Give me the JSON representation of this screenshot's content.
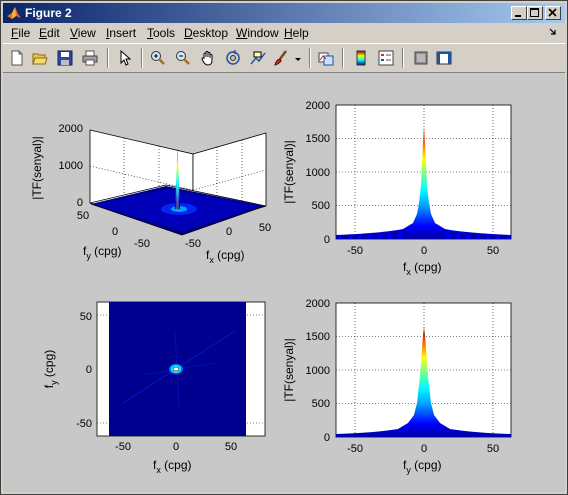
{
  "window": {
    "title": "Figure 2"
  },
  "menubar": {
    "items": [
      {
        "pre": "",
        "u": "F",
        "post": "ile"
      },
      {
        "pre": "",
        "u": "E",
        "post": "dit"
      },
      {
        "pre": "",
        "u": "V",
        "post": "iew"
      },
      {
        "pre": "",
        "u": "I",
        "post": "nsert"
      },
      {
        "pre": "",
        "u": "T",
        "post": "ools"
      },
      {
        "pre": "",
        "u": "D",
        "post": "esktop"
      },
      {
        "pre": "",
        "u": "W",
        "post": "indow"
      },
      {
        "pre": "",
        "u": "H",
        "post": "elp"
      }
    ]
  },
  "toolbar": {
    "icons": [
      "new-figure-icon",
      "open-file-icon",
      "save-icon",
      "print-icon",
      "edit-plot-arrow-icon",
      "zoom-in-icon",
      "zoom-out-icon",
      "pan-hand-icon",
      "rotate-3d-icon",
      "data-cursor-icon",
      "brush-icon",
      "brush-dropdown-icon",
      "link-plot-icon",
      "colorbar-icon",
      "legend-icon",
      "hide-plot-tools-icon",
      "show-plot-tools-icon"
    ]
  },
  "colors": {
    "accent_low": "#00008f",
    "accent_high": "#800000"
  },
  "plots": {
    "p1": {
      "ylabel": "|TF(senyal)|",
      "xlabel_main": "f",
      "xlabel_sub": "x",
      "xlabel_unit": " (cpg)",
      "ylabel2_main": "f",
      "ylabel2_sub": "y",
      "ylabel2_unit": " (cpg)",
      "zticks": [
        "2000",
        "1000",
        "0"
      ],
      "yticks": [
        "50",
        "0",
        "-50"
      ],
      "xticks": [
        "-50",
        "0",
        "50"
      ]
    },
    "p2": {
      "ylabel": "|TF(senyal)|",
      "xlabel_main": "f",
      "xlabel_sub": "x",
      "xlabel_unit": " (cpg)",
      "yticks": [
        "2000",
        "1500",
        "1000",
        "500",
        "0"
      ],
      "xticks": [
        "-50",
        "0",
        "50"
      ]
    },
    "p3": {
      "ylabel_main": "f",
      "ylabel_sub": "y",
      "ylabel_unit": " (cpg)",
      "xlabel_main": "f",
      "xlabel_sub": "x",
      "xlabel_unit": " (cpg)",
      "yticks": [
        "50",
        "0",
        "-50"
      ],
      "xticks": [
        "-50",
        "0",
        "50"
      ]
    },
    "p4": {
      "ylabel": "|TF(senyal)|",
      "xlabel_main": "f",
      "xlabel_sub": "y",
      "xlabel_unit": " (cpg)",
      "yticks": [
        "2000",
        "1500",
        "1000",
        "500",
        "0"
      ],
      "xticks": [
        "-50",
        "0",
        "50"
      ]
    }
  }
}
